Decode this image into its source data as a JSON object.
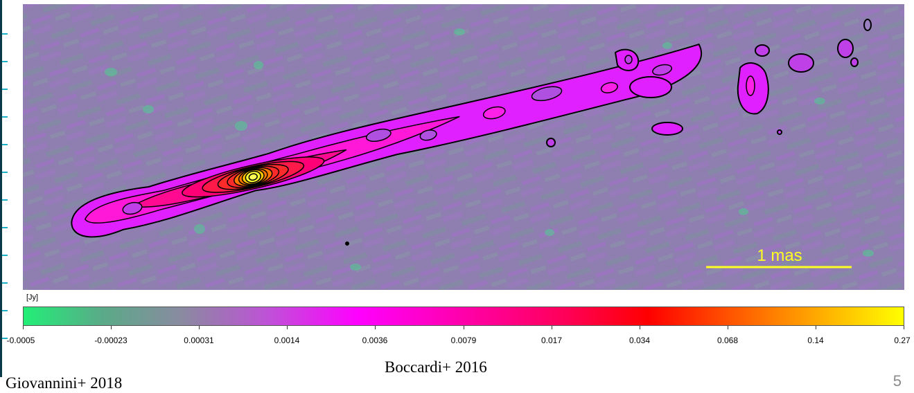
{
  "image": {
    "scale_bar_label": "1 mas",
    "colormap": [
      "#22ee77",
      "#7a7a9a",
      "#c050d8",
      "#ff00ff",
      "#ff0077",
      "#ff0000",
      "#ff8800",
      "#ffff00"
    ],
    "contour_color": "#000000"
  },
  "colorbar": {
    "unit_label": "[Jy]",
    "tick_labels": [
      "-0.0005",
      "-0.00023",
      "0.00031",
      "0.0014",
      "0.0036",
      "0.0079",
      "0.017",
      "0.034",
      "0.068",
      "0.14",
      "0.27"
    ]
  },
  "credits": {
    "figure_source": "Boccardi+ 2016",
    "slide_source": "Giovannini+ 2018"
  },
  "slide": {
    "number": "5"
  }
}
